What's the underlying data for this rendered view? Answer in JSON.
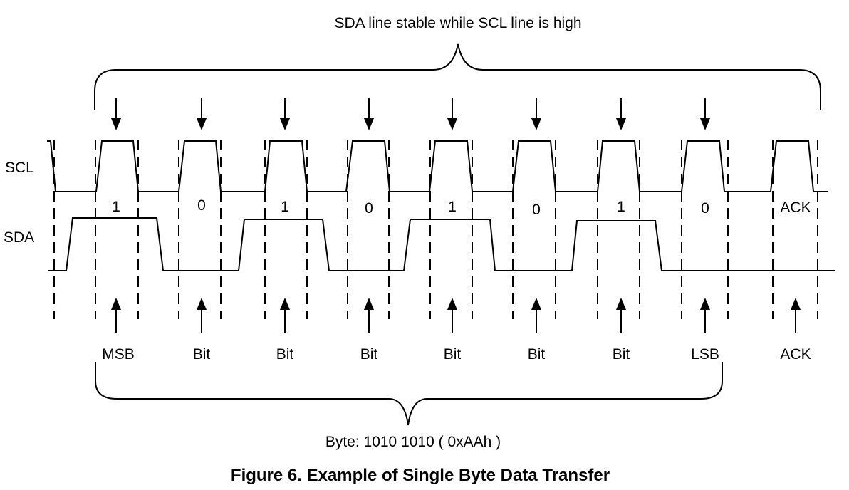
{
  "top_brace_label": "SDA line stable while SCL line is high",
  "signals": {
    "scl": "SCL",
    "sda": "SDA"
  },
  "bits": [
    {
      "value": "1",
      "label": "MSB"
    },
    {
      "value": "0",
      "label": "Bit"
    },
    {
      "value": "1",
      "label": "Bit"
    },
    {
      "value": "0",
      "label": "Bit"
    },
    {
      "value": "1",
      "label": "Bit"
    },
    {
      "value": "0",
      "label": "Bit"
    },
    {
      "value": "1",
      "label": "Bit"
    },
    {
      "value": "0",
      "label": "LSB"
    },
    {
      "value": "ACK",
      "label": "ACK"
    }
  ],
  "bottom_brace_label": "Byte: 1010 1010 ( 0xAAh )",
  "caption": "Figure 6. Example of Single Byte Data Transfer"
}
